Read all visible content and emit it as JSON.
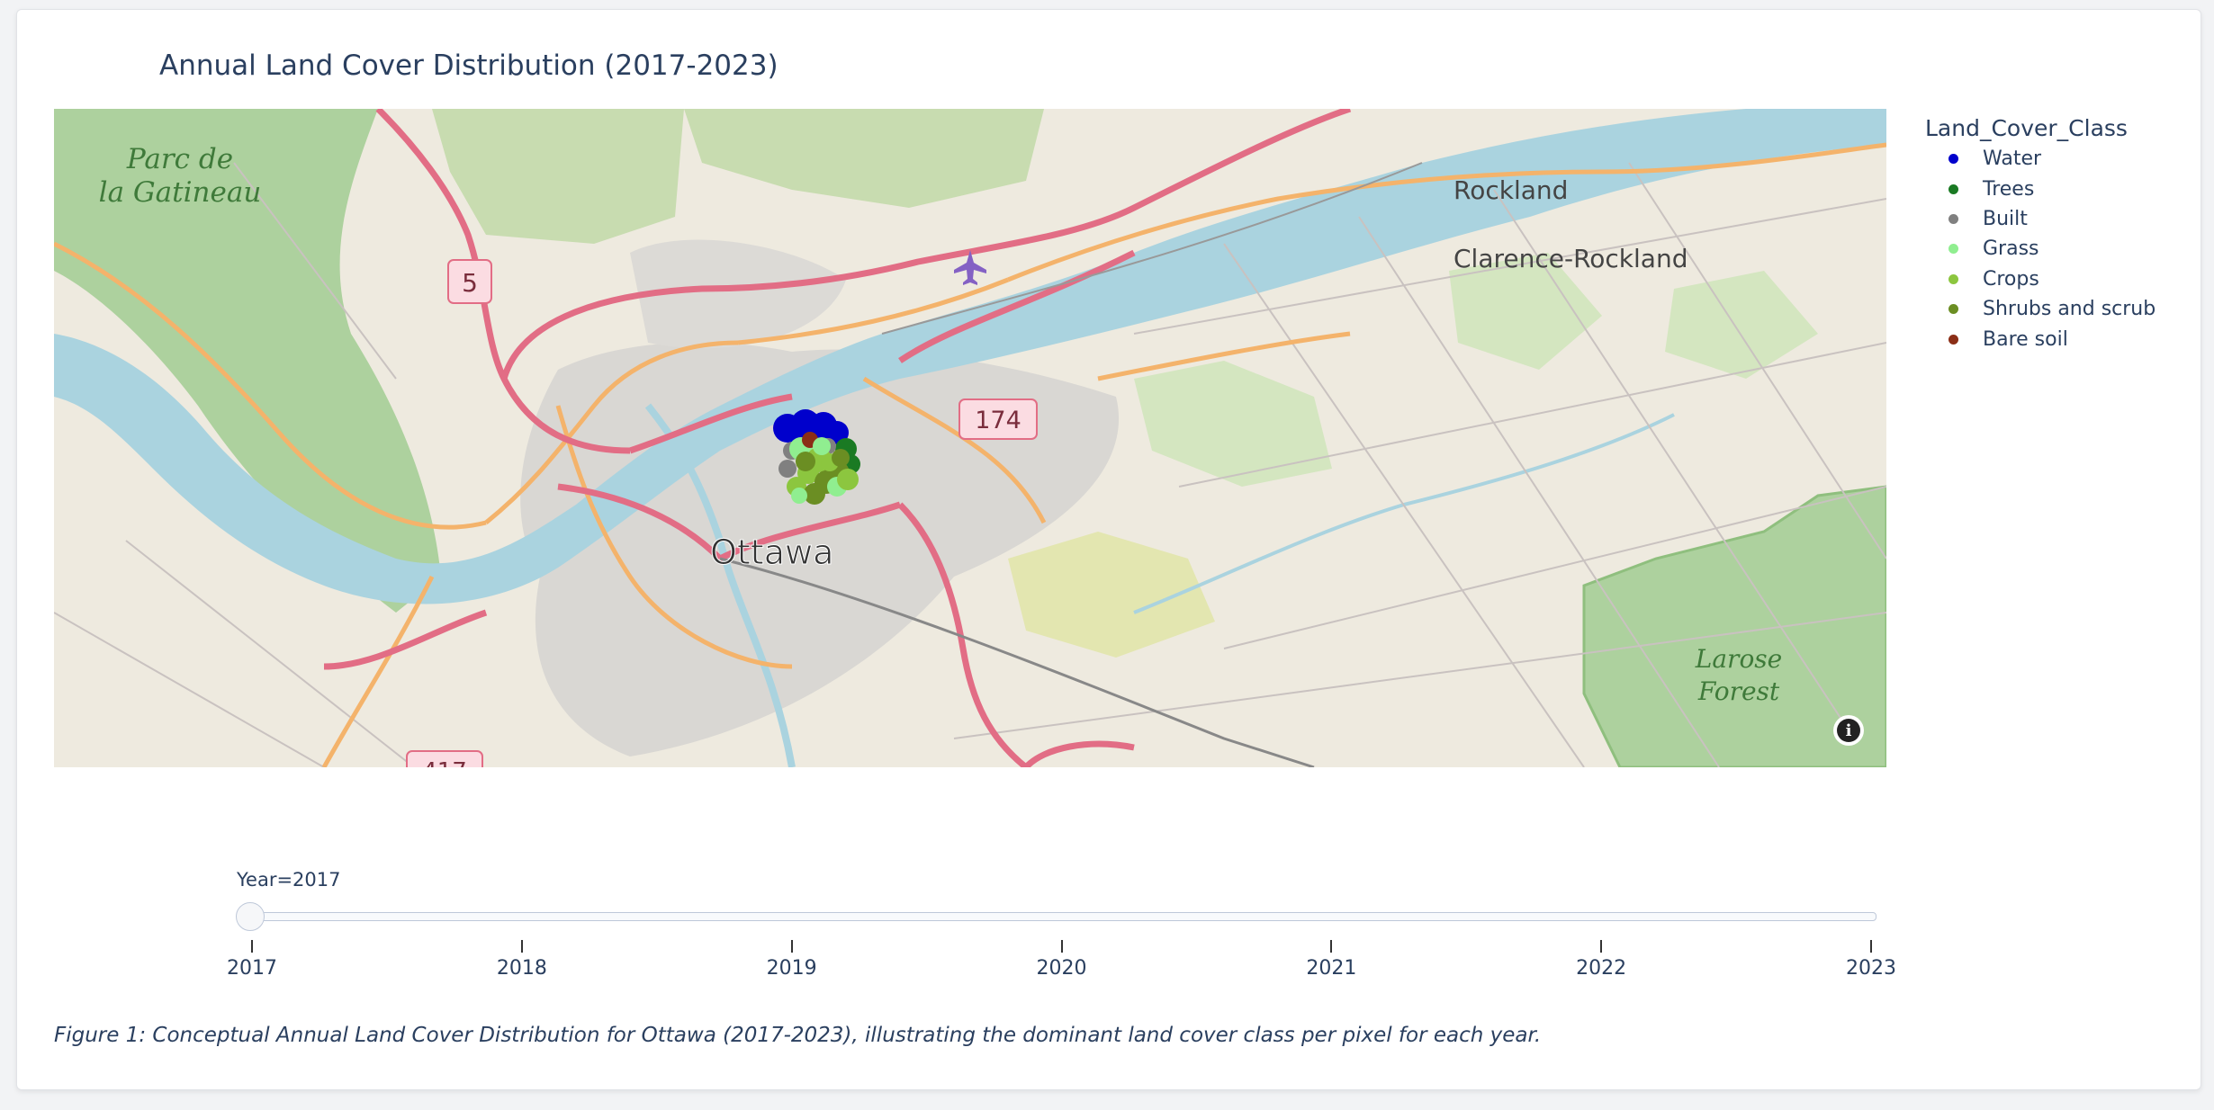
{
  "title": "Annual Land Cover Distribution (2017-2023)",
  "map": {
    "place_labels": {
      "park": "Parc de la Gatineau",
      "park_line1": "Parc de",
      "park_line2": "la Gatineau",
      "city": "Ottawa",
      "rockland": "Rockland",
      "clarence": "Clarence-Rockland",
      "forest_line1": "Larose",
      "forest_line2": "Forest"
    },
    "road_shields": {
      "route_5": "5",
      "route_174": "174",
      "route_417": "417"
    },
    "colors": {
      "land": "#eeeadf",
      "river": "#aad3df",
      "forest": "#add19e",
      "motorway": "#e26d85",
      "primary": "#f4b36b"
    },
    "airport_icon": "airplane-icon",
    "info_icon": "info-icon"
  },
  "legend": {
    "title": "Land_Cover_Class",
    "items": [
      {
        "label": "Water",
        "color": "#0000cc"
      },
      {
        "label": "Trees",
        "color": "#1a7a23"
      },
      {
        "label": "Built",
        "color": "#808080"
      },
      {
        "label": "Grass",
        "color": "#90ee90"
      },
      {
        "label": "Crops",
        "color": "#8cc63f"
      },
      {
        "label": "Shrubs and scrub",
        "color": "#6b8e23"
      },
      {
        "label": "Bare soil",
        "color": "#8b2e16"
      }
    ]
  },
  "slider": {
    "current_label": "Year=2017",
    "ticks": [
      "2017",
      "2018",
      "2019",
      "2020",
      "2021",
      "2022",
      "2023"
    ],
    "value": "2017"
  },
  "caption": "Figure 1: Conceptual Annual Land Cover Distribution for Ottawa (2017-2023), illustrating the dominant land cover class per pixel for each year."
}
